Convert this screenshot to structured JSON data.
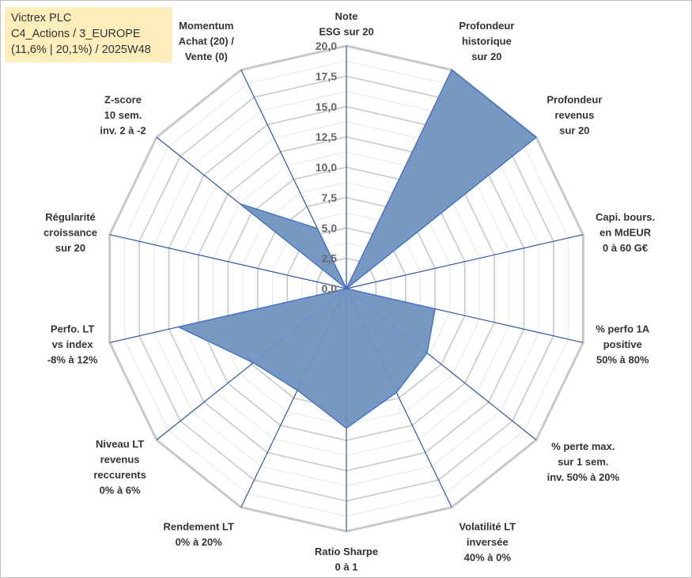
{
  "chart_data": {
    "type": "radar",
    "title_lines": [
      "Victrex PLC",
      "C4_Actions / 3_EUROPE",
      "(11,6% | 20,1%) / 2025W48"
    ],
    "range": [
      0,
      20
    ],
    "ticks": [
      "0,0",
      "2,5",
      "5,0",
      "7,5",
      "10,0",
      "12,5",
      "15,0",
      "17,5",
      "20,0"
    ],
    "tick_values": [
      0,
      2.5,
      5,
      7.5,
      10,
      12.5,
      15,
      17.5,
      20
    ],
    "fill_color": "#7092be",
    "line_color": "#4472c4",
    "grid_color": "#c8c8c8",
    "axes": [
      {
        "name": "Note ESG",
        "label_lines": [
          "Note",
          "ESG sur 20"
        ],
        "value": 0
      },
      {
        "name": "Profondeur historique",
        "label_lines": [
          "Profondeur",
          "historique",
          "sur 20"
        ],
        "value": 20
      },
      {
        "name": "Profondeur revenus",
        "label_lines": [
          "Profondeur",
          "revenus",
          "sur 20"
        ],
        "value": 20
      },
      {
        "name": "Capi. bours.",
        "label_lines": [
          "Capi. bours.",
          "en MdEUR",
          "0 à 60 G€"
        ],
        "value": 0
      },
      {
        "name": "% perfo 1A positive",
        "label_lines": [
          "% perfo 1A",
          "positive",
          "50% à 80%"
        ],
        "value": 7.5
      },
      {
        "name": "% perte max.",
        "label_lines": [
          "% perte max.",
          "sur 1 sem.",
          "inv. 50% à 20%"
        ],
        "value": 8.5
      },
      {
        "name": "Volatilité LT inversée",
        "label_lines": [
          "Volatilité LT",
          "inversée",
          "40% à 0%"
        ],
        "value": 9.5
      },
      {
        "name": "Ratio Sharpe",
        "label_lines": [
          "Ratio Sharpe",
          "0 à 1"
        ],
        "value": 11.5
      },
      {
        "name": "Rendement LT",
        "label_lines": [
          "Rendement LT",
          "0% à 20%"
        ],
        "value": 9.3
      },
      {
        "name": "Niveau LT revenus reccurents",
        "label_lines": [
          "Niveau LT",
          "revenus",
          "reccurents",
          "0% à 6%"
        ],
        "value": 9.8
      },
      {
        "name": "Perfo. LT vs index",
        "label_lines": [
          "Perfo. LT",
          "vs index",
          "-8% à 12%"
        ],
        "value": 14.2
      },
      {
        "name": "Régularité croissance",
        "label_lines": [
          "Régularité",
          "croissance",
          "sur 20"
        ],
        "value": 0
      },
      {
        "name": "Z-score",
        "label_lines": [
          "Z-score",
          "10 sem.",
          "inv. 2 à -2"
        ],
        "value": 11.2
      },
      {
        "name": "Momentum",
        "label_lines": [
          "Momentum",
          "Achat (20) /",
          "Vente (0)"
        ],
        "value": 5.5
      }
    ]
  }
}
